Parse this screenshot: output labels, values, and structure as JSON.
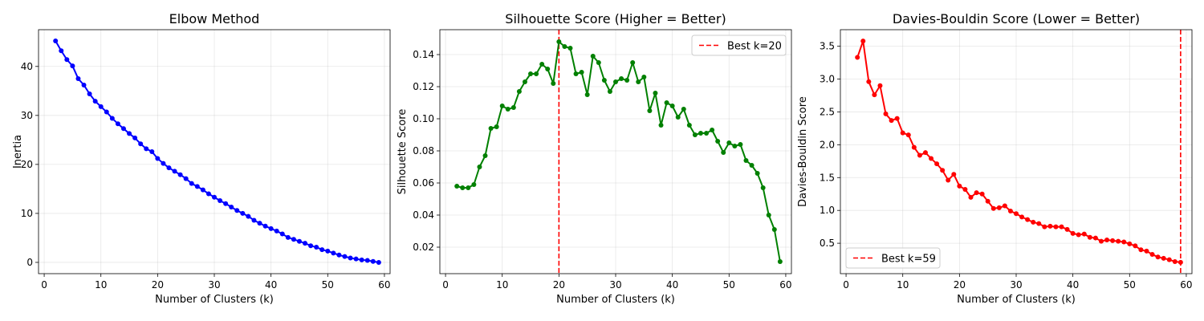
{
  "chart_data": [
    {
      "type": "line",
      "title": "Elbow Method",
      "xlabel": "Number of Clusters (k)",
      "ylabel": "Inertia",
      "xlim": [
        -1,
        61
      ],
      "ylim": [
        -2.3,
        47.5
      ],
      "xticks": [
        0,
        10,
        20,
        30,
        40,
        50,
        60
      ],
      "yticks": [
        0,
        10,
        20,
        30,
        40
      ],
      "grid": true,
      "series": [
        {
          "color": "#0000ff",
          "x": [
            2,
            3,
            4,
            5,
            6,
            7,
            8,
            9,
            10,
            11,
            12,
            13,
            14,
            15,
            16,
            17,
            18,
            19,
            20,
            21,
            22,
            23,
            24,
            25,
            26,
            27,
            28,
            29,
            30,
            31,
            32,
            33,
            34,
            35,
            36,
            37,
            38,
            39,
            40,
            41,
            42,
            43,
            44,
            45,
            46,
            47,
            48,
            49,
            50,
            51,
            52,
            53,
            54,
            55,
            56,
            57,
            58,
            59
          ],
          "y": [
            45.2,
            43.2,
            41.4,
            40.1,
            37.5,
            36.2,
            34.4,
            32.9,
            31.8,
            30.7,
            29.4,
            28.3,
            27.3,
            26.3,
            25.4,
            24.2,
            23.2,
            22.6,
            21.2,
            20.2,
            19.3,
            18.6,
            17.9,
            17.1,
            16.1,
            15.5,
            14.8,
            14.0,
            13.3,
            12.6,
            12.0,
            11.3,
            10.6,
            10.0,
            9.4,
            8.6,
            8.0,
            7.4,
            6.9,
            6.4,
            5.8,
            5.1,
            4.7,
            4.3,
            3.9,
            3.4,
            3.1,
            2.6,
            2.3,
            1.9,
            1.5,
            1.2,
            0.9,
            0.7,
            0.5,
            0.4,
            0.2,
            0.0
          ]
        }
      ]
    },
    {
      "type": "line",
      "title": "Silhouette Score (Higher = Better)",
      "xlabel": "Number of Clusters (k)",
      "ylabel": "Silhouette Score",
      "xlim": [
        -1,
        61
      ],
      "ylim": [
        0.0035,
        0.1555
      ],
      "xticks": [
        0,
        10,
        20,
        30,
        40,
        50,
        60
      ],
      "yticks": [
        0.02,
        0.04,
        0.06,
        0.08,
        0.1,
        0.12,
        0.14
      ],
      "ytick_labels": [
        "0.02",
        "0.04",
        "0.06",
        "0.08",
        "0.10",
        "0.12",
        "0.14"
      ],
      "grid": true,
      "legend": {
        "position": "upper-right",
        "label": "Best k=20"
      },
      "vline": {
        "x": 20,
        "color": "#ff0000"
      },
      "series": [
        {
          "color": "#008000",
          "x": [
            2,
            3,
            4,
            5,
            6,
            7,
            8,
            9,
            10,
            11,
            12,
            13,
            14,
            15,
            16,
            17,
            18,
            19,
            20,
            21,
            22,
            23,
            24,
            25,
            26,
            27,
            28,
            29,
            30,
            31,
            32,
            33,
            34,
            35,
            36,
            37,
            38,
            39,
            40,
            41,
            42,
            43,
            44,
            45,
            46,
            47,
            48,
            49,
            50,
            51,
            52,
            53,
            54,
            55,
            56,
            57,
            58,
            59
          ],
          "y": [
            0.058,
            0.057,
            0.057,
            0.059,
            0.07,
            0.077,
            0.094,
            0.095,
            0.108,
            0.106,
            0.107,
            0.117,
            0.123,
            0.128,
            0.128,
            0.134,
            0.131,
            0.122,
            0.148,
            0.145,
            0.144,
            0.128,
            0.129,
            0.115,
            0.139,
            0.135,
            0.124,
            0.117,
            0.123,
            0.125,
            0.124,
            0.135,
            0.123,
            0.126,
            0.105,
            0.116,
            0.096,
            0.11,
            0.108,
            0.101,
            0.106,
            0.096,
            0.09,
            0.091,
            0.091,
            0.093,
            0.086,
            0.079,
            0.085,
            0.083,
            0.084,
            0.074,
            0.071,
            0.066,
            0.057,
            0.04,
            0.031,
            0.011
          ]
        }
      ]
    },
    {
      "type": "line",
      "title": "Davies-Bouldin Score (Lower = Better)",
      "xlabel": "Number of Clusters (k)",
      "ylabel": "Davies-Bouldin Score",
      "xlim": [
        -1,
        61
      ],
      "ylim": [
        0.037,
        3.752
      ],
      "xticks": [
        0,
        10,
        20,
        30,
        40,
        50,
        60
      ],
      "yticks": [
        0.5,
        1.0,
        1.5,
        2.0,
        2.5,
        3.0,
        3.5
      ],
      "ytick_labels": [
        "0.5",
        "1.0",
        "1.5",
        "2.0",
        "2.5",
        "3.0",
        "3.5"
      ],
      "grid": true,
      "legend": {
        "position": "lower-left",
        "label": "Best k=59"
      },
      "vline": {
        "x": 59,
        "color": "#ff0000"
      },
      "series": [
        {
          "color": "#ff0000",
          "x": [
            2,
            3,
            4,
            5,
            6,
            7,
            8,
            9,
            10,
            11,
            12,
            13,
            14,
            15,
            16,
            17,
            18,
            19,
            20,
            21,
            22,
            23,
            24,
            25,
            26,
            27,
            28,
            29,
            30,
            31,
            32,
            33,
            34,
            35,
            36,
            37,
            38,
            39,
            40,
            41,
            42,
            43,
            44,
            45,
            46,
            47,
            48,
            49,
            50,
            51,
            52,
            53,
            54,
            55,
            56,
            57,
            58,
            59
          ],
          "y": [
            3.33,
            3.58,
            2.96,
            2.76,
            2.9,
            2.47,
            2.37,
            2.4,
            2.18,
            2.15,
            1.96,
            1.84,
            1.88,
            1.79,
            1.71,
            1.61,
            1.46,
            1.55,
            1.37,
            1.32,
            1.2,
            1.27,
            1.25,
            1.14,
            1.03,
            1.04,
            1.07,
            0.99,
            0.95,
            0.9,
            0.86,
            0.82,
            0.8,
            0.75,
            0.76,
            0.75,
            0.75,
            0.71,
            0.65,
            0.63,
            0.64,
            0.59,
            0.58,
            0.53,
            0.55,
            0.54,
            0.53,
            0.52,
            0.49,
            0.46,
            0.4,
            0.38,
            0.33,
            0.29,
            0.27,
            0.25,
            0.22,
            0.21
          ]
        }
      ]
    }
  ]
}
